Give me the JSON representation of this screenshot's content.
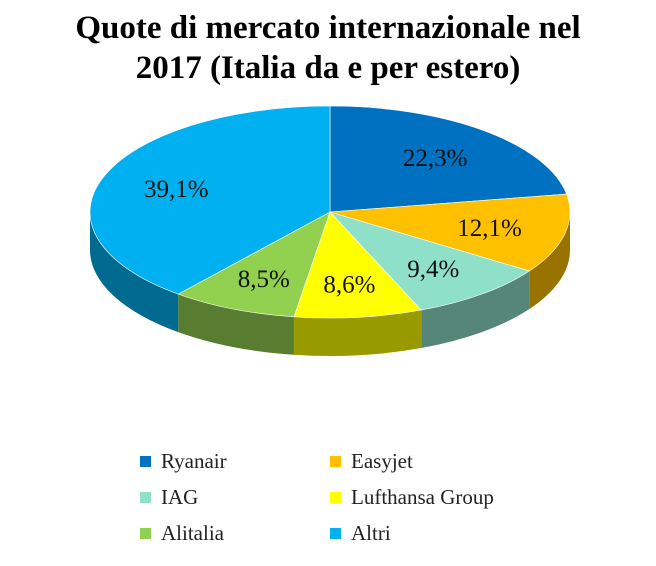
{
  "chart_data": {
    "type": "pie",
    "title_lines": [
      "Quote di mercato internazionale nel",
      "2017 (Italia da e per estero)"
    ],
    "categories": [
      "Ryanair",
      "Easyjet",
      "IAG",
      "Lufthansa Group",
      "Alitalia",
      "Altri"
    ],
    "values": [
      22.3,
      12.1,
      9.4,
      8.6,
      8.5,
      39.1
    ],
    "labels": [
      "22,3%",
      "12,1%",
      "9,4%",
      "8,6%",
      "8,5%",
      "39,1%"
    ],
    "colors": [
      "#0070C0",
      "#FFC000",
      "#8EE0C8",
      "#FFFF00",
      "#92D050",
      "#00B0F0"
    ],
    "legend_position": "bottom",
    "style": "3d"
  }
}
